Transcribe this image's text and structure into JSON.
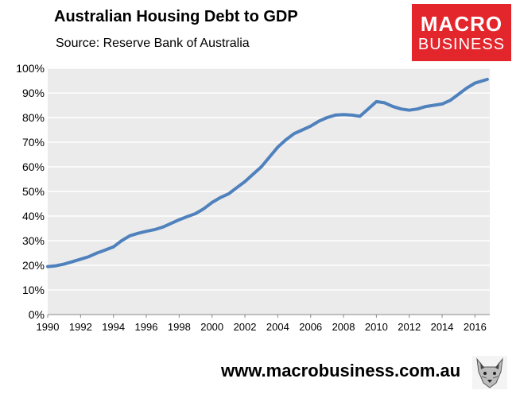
{
  "header": {
    "title": "Australian Housing Debt to GDP",
    "subtitle": "Source: Reserve Bank of Australia"
  },
  "logo": {
    "line1": "MACRO",
    "line2": "BUSINESS",
    "color": "#e3262c"
  },
  "footer": {
    "url": "www.macrobusiness.com.au",
    "mascot_icon": "wolf-head-icon"
  },
  "colors": {
    "line": "#4f81bd",
    "plot_bg": "#ebebeb",
    "grid": "#ffffff"
  },
  "chart_data": {
    "type": "line",
    "ylim": [
      0,
      100
    ],
    "xlim": [
      1990,
      2016.9
    ],
    "grid": true,
    "y_ticks": [
      "0%",
      "10%",
      "20%",
      "30%",
      "40%",
      "50%",
      "60%",
      "70%",
      "80%",
      "90%",
      "100%"
    ],
    "x_ticks": [
      "1990",
      "1992",
      "1994",
      "1996",
      "1998",
      "2000",
      "2002",
      "2004",
      "2006",
      "2008",
      "2010",
      "2012",
      "2014",
      "2016"
    ],
    "series": [
      {
        "x": [
          1990,
          1990.5,
          1991,
          1991.5,
          1992,
          1992.5,
          1993,
          1993.5,
          1994,
          1994.5,
          1995,
          1995.5,
          1996,
          1996.5,
          1997,
          1997.5,
          1998,
          1998.5,
          1999,
          1999.5,
          2000,
          2000.5,
          2001,
          2001.5,
          2002,
          2002.5,
          2003,
          2003.5,
          2004,
          2004.5,
          2005,
          2005.5,
          2006,
          2006.5,
          2007,
          2007.5,
          2008,
          2008.5,
          2009,
          2009.5,
          2010,
          2010.5,
          2011,
          2011.5,
          2012,
          2012.5,
          2013,
          2013.5,
          2014,
          2014.5,
          2015,
          2015.5,
          2016,
          2016.5,
          2016.75
        ],
        "values": [
          19.5,
          19.8,
          20.5,
          21.5,
          22.5,
          23.5,
          25,
          26.2,
          27.5,
          30,
          32,
          33,
          33.8,
          34.5,
          35.5,
          37,
          38.5,
          39.8,
          41,
          43,
          45.5,
          47.5,
          49,
          51.5,
          54,
          57,
          60,
          64,
          68,
          71,
          73.5,
          75,
          76.5,
          78.5,
          80,
          81,
          81.2,
          81,
          80.5,
          83.5,
          86.5,
          86,
          84.5,
          83.5,
          83,
          83.5,
          84.5,
          85,
          85.5,
          87,
          89.5,
          92,
          94,
          95,
          95.5
        ]
      }
    ]
  }
}
